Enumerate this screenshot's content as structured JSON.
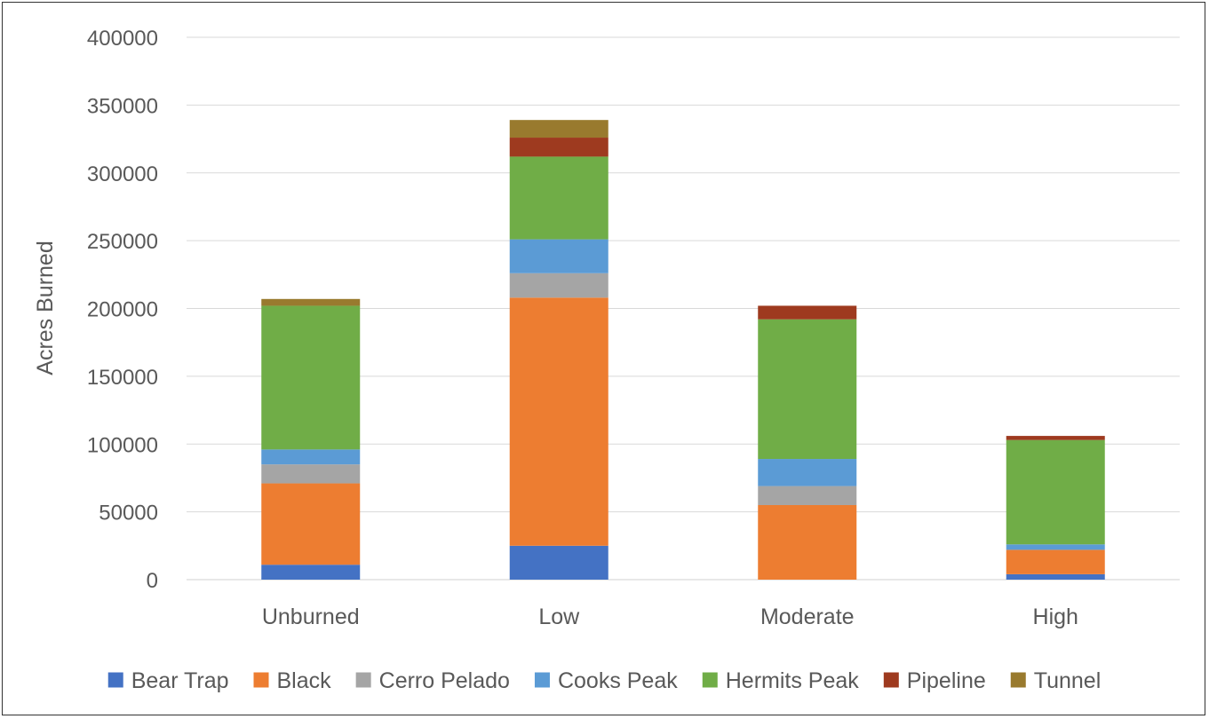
{
  "chart_data": {
    "type": "bar",
    "stacked": true,
    "title": "",
    "xlabel": "",
    "ylabel": "Acres Burned",
    "ylim": [
      0,
      400000
    ],
    "yticks": [
      0,
      50000,
      100000,
      150000,
      200000,
      250000,
      300000,
      350000,
      400000
    ],
    "grid": true,
    "legend_position": "bottom",
    "categories": [
      "Unburned",
      "Low",
      "Moderate",
      "High"
    ],
    "series": [
      {
        "name": "Bear Trap",
        "color": "#4472C4",
        "values": [
          11000,
          25000,
          0,
          4000
        ]
      },
      {
        "name": "Black",
        "color": "#ED7D31",
        "values": [
          60000,
          183000,
          55000,
          18000
        ]
      },
      {
        "name": "Cerro Pelado",
        "color": "#A5A5A5",
        "values": [
          14000,
          18000,
          14000,
          0
        ]
      },
      {
        "name": "Cooks Peak",
        "color": "#5B9BD5",
        "values": [
          11000,
          25000,
          20000,
          4000
        ]
      },
      {
        "name": "Hermits Peak",
        "color": "#70AD47",
        "values": [
          106000,
          61000,
          103000,
          77000
        ]
      },
      {
        "name": "Pipeline",
        "color": "#9E3A1F",
        "values": [
          0,
          14000,
          10000,
          3000
        ]
      },
      {
        "name": "Tunnel",
        "color": "#997A2E",
        "values": [
          5000,
          13000,
          0,
          0
        ]
      }
    ]
  }
}
